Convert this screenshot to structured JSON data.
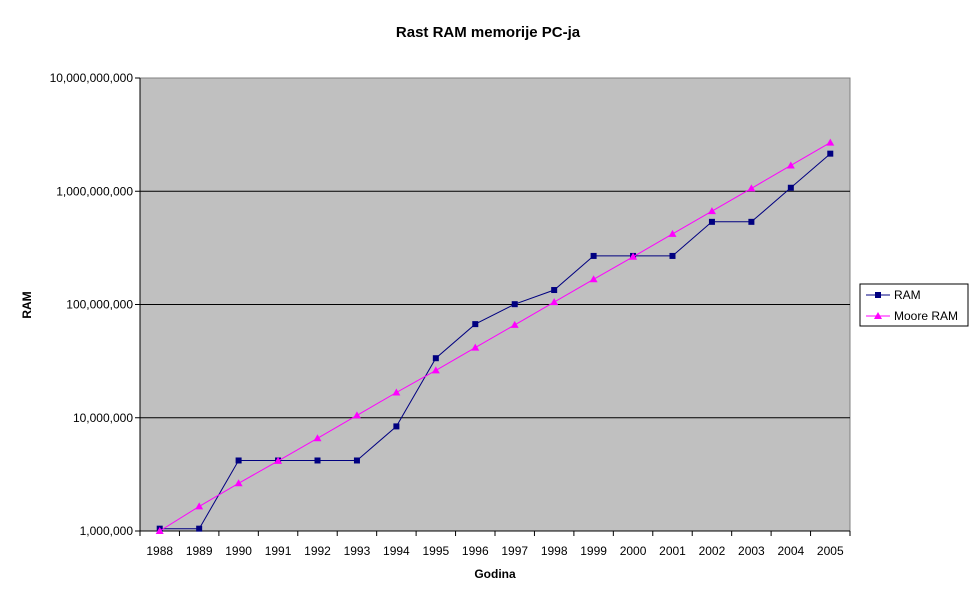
{
  "chart_data": {
    "type": "line",
    "title": "Rast RAM memorije PC-ja",
    "xlabel": "Godina",
    "ylabel": "RAM",
    "y_scale": "log",
    "ylim": [
      1000000,
      10000000000
    ],
    "y_ticks": [
      1000000,
      10000000,
      100000000,
      1000000000,
      10000000000
    ],
    "y_tick_labels": [
      "1,000,000",
      "10,000,000",
      "100,000,000",
      "1,000,000,000",
      "10,000,000,000"
    ],
    "categories": [
      "1988",
      "1989",
      "1990",
      "1991",
      "1992",
      "1993",
      "1994",
      "1995",
      "1996",
      "1997",
      "1998",
      "1999",
      "2000",
      "2001",
      "2002",
      "2003",
      "2004",
      "2005"
    ],
    "grid": true,
    "legend_position": "right",
    "plot_background": "#c0c0c0",
    "series": [
      {
        "name": "RAM",
        "color": "#000080",
        "marker": "square",
        "values": [
          1048576,
          1048576,
          4194304,
          4194304,
          4194304,
          4194304,
          8388608,
          33554432,
          67108864,
          100663296,
          134217728,
          268435456,
          268435456,
          268435456,
          536870912,
          536870912,
          1073741824,
          2147483648
        ]
      },
      {
        "name": "Moore RAM",
        "color": "#ff00ff",
        "marker": "triangle",
        "values": [
          1000000,
          1650000,
          2640000,
          4160000,
          6590000,
          10500000,
          16700000,
          26200000,
          41600000,
          66100000,
          105000000,
          167000000,
          264000000,
          420000000,
          667000000,
          1060000000,
          1690000000,
          2690000000
        ]
      }
    ]
  }
}
